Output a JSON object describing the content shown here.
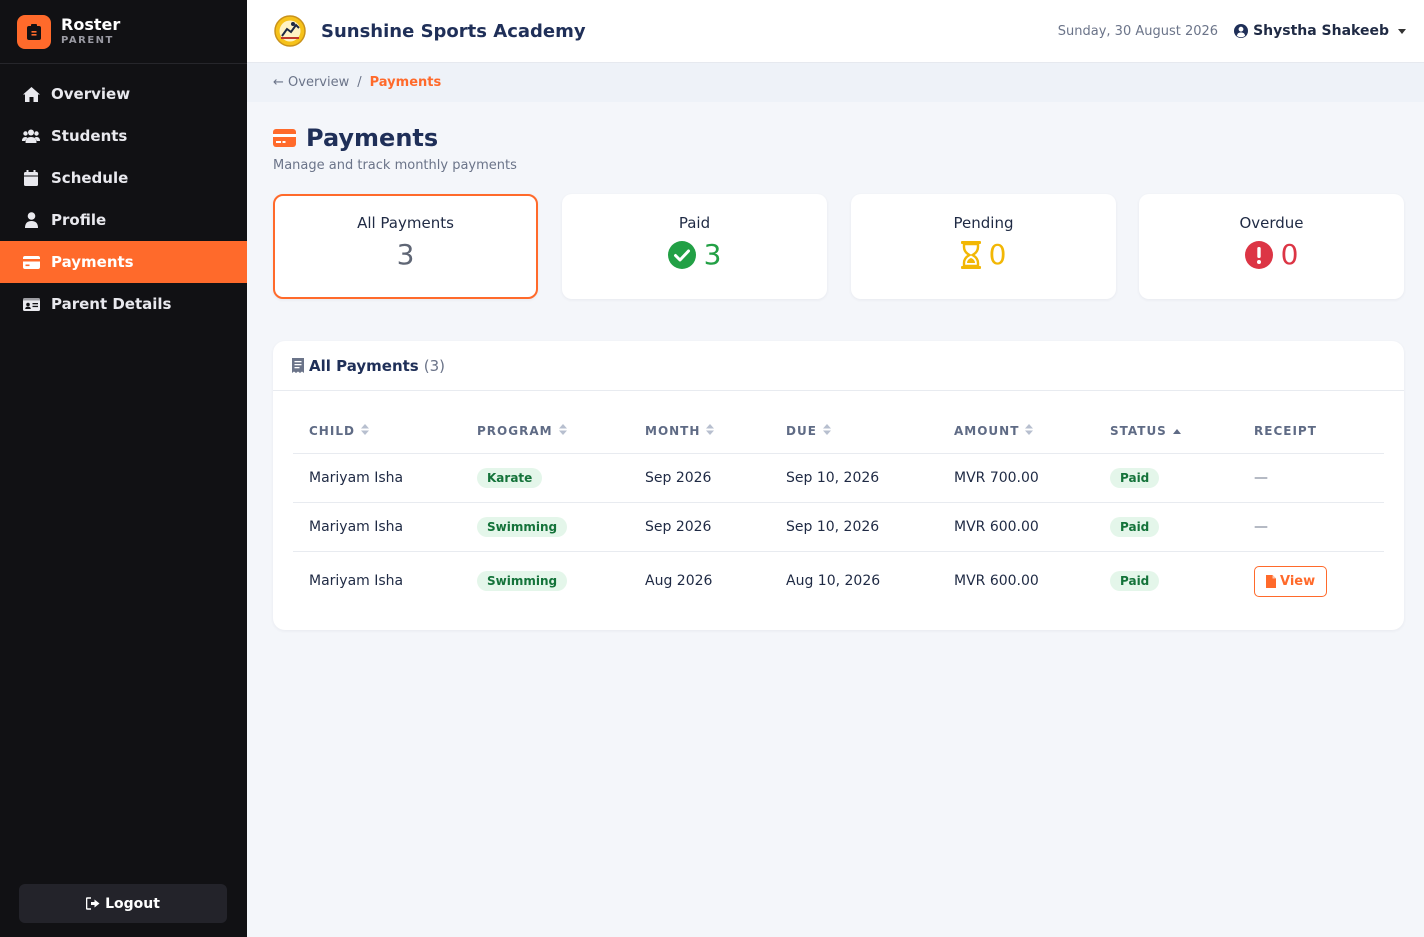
{
  "sidebar": {
    "brand_name": "Roster",
    "brand_role": "PARENT",
    "items": [
      {
        "label": "Overview",
        "icon": "home-icon"
      },
      {
        "label": "Students",
        "icon": "users-icon"
      },
      {
        "label": "Schedule",
        "icon": "calendar-icon"
      },
      {
        "label": "Profile",
        "icon": "user-icon"
      },
      {
        "label": "Payments",
        "icon": "credit-card-icon",
        "active": true
      },
      {
        "label": "Parent Details",
        "icon": "id-card-icon"
      }
    ],
    "logout_label": "Logout"
  },
  "header": {
    "academy_name": "Sunshine Sports Academy",
    "date": "Sunday, 30 August 2026",
    "user_name": "Shystha Shakeeb"
  },
  "breadcrumb": {
    "back_label": "← Overview",
    "separator": "/",
    "current": "Payments"
  },
  "page": {
    "title": "Payments",
    "subtitle": "Manage and track monthly payments"
  },
  "stats": [
    {
      "label": "All Payments",
      "value": "3",
      "color": "#5f6675"
    },
    {
      "label": "Paid",
      "value": "3",
      "color": "#22a045"
    },
    {
      "label": "Pending",
      "value": "0",
      "color": "#f2b705"
    },
    {
      "label": "Overdue",
      "value": "0",
      "color": "#dc3545"
    }
  ],
  "table": {
    "title": "All Payments",
    "count": "(3)",
    "columns": [
      "CHILD",
      "PROGRAM",
      "MONTH",
      "DUE",
      "AMOUNT",
      "STATUS",
      "RECEIPT"
    ],
    "rows": [
      {
        "child": "Mariyam Isha",
        "program": "Karate",
        "month": "Sep 2026",
        "due": "Sep 10, 2026",
        "amount": "MVR 700.00",
        "status": "Paid",
        "receipt": "—"
      },
      {
        "child": "Mariyam Isha",
        "program": "Swimming",
        "month": "Sep 2026",
        "due": "Sep 10, 2026",
        "amount": "MVR 600.00",
        "status": "Paid",
        "receipt": "—"
      },
      {
        "child": "Mariyam Isha",
        "program": "Swimming",
        "month": "Aug 2026",
        "due": "Aug 10, 2026",
        "amount": "MVR 600.00",
        "status": "Paid",
        "receipt": "View"
      }
    ]
  },
  "colors": {
    "accent": "#ff6a2b",
    "sidebar_bg": "#111114",
    "navy": "#1f2f58"
  }
}
